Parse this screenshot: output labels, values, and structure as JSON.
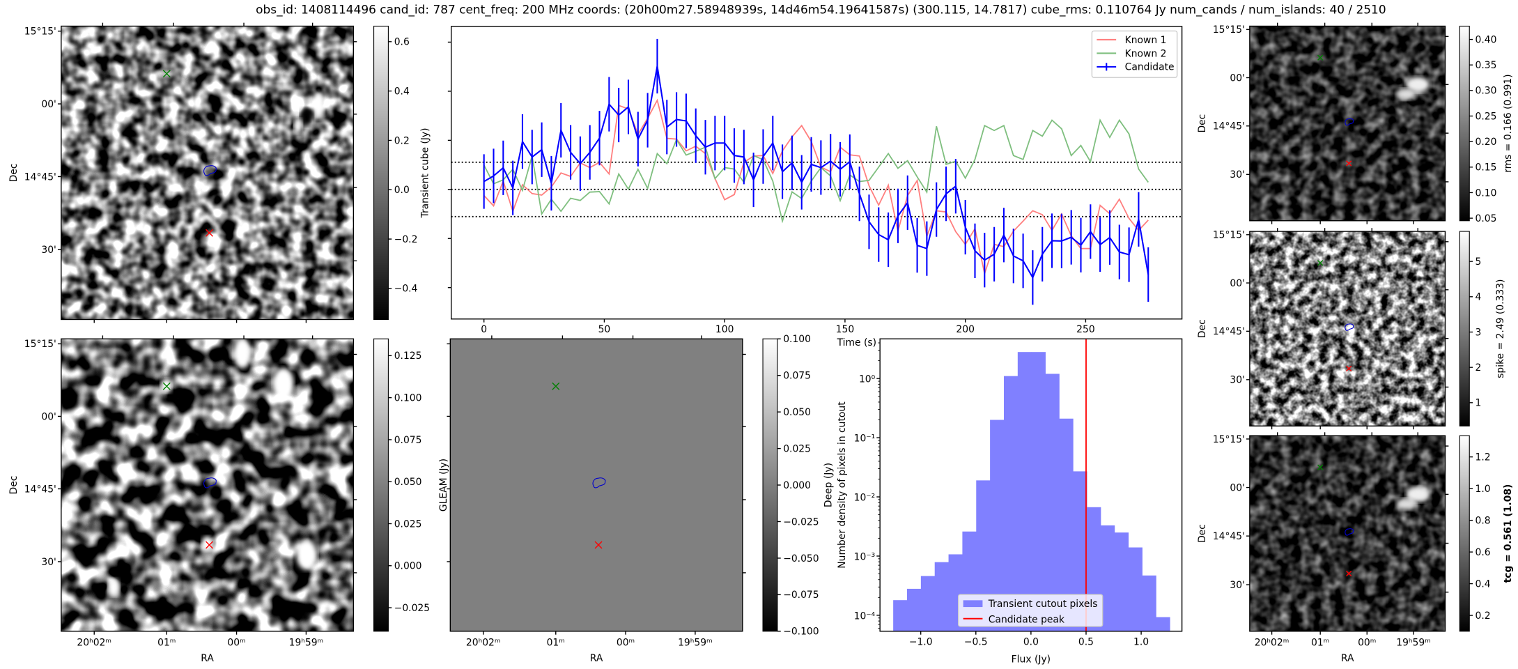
{
  "title": "obs_id: 1408114496 cand_id: 787 cent_freq: 200 MHz coords: (20h00m27.58948939s, 14d46m54.19641587s) (300.115, 14.7817) cube_rms: 0.110764 Jy num_cands / num_islands: 40 / 2510",
  "sky_axes": {
    "dec_label": "Dec",
    "ra_label": "RA",
    "dec_ticks": [
      "15°15'",
      "00'",
      "14°45'",
      "30'"
    ],
    "ra_ticks": [
      "20ʰ02ᵐ",
      "01ᵐ",
      "00ᵐ",
      "19ʰ59ᵐ"
    ]
  },
  "colors": {
    "known1": "#ff7f7f",
    "known2": "#7fbf7f",
    "candidate": "#0000ff",
    "hist": "#8080ff",
    "peak": "#ff0000",
    "gleam_fill": "#808080"
  },
  "panels": {
    "transient": {
      "cbar_label": "Transient cube (Jy)",
      "range": [
        -0.526,
        0.663
      ],
      "ticks": [
        {
          "v": 0.6,
          "label": "0.6"
        },
        {
          "v": 0.4,
          "label": "0.4"
        },
        {
          "v": 0.2,
          "label": "0.2"
        },
        {
          "v": 0.0,
          "label": "0.0"
        },
        {
          "v": -0.2,
          "label": "−0.2"
        },
        {
          "v": -0.4,
          "label": "−0.4"
        }
      ]
    },
    "deep": {
      "cbar_label": "GLEAM (Jy)",
      "range": [
        -0.039,
        0.135
      ],
      "ticks": [
        {
          "v": 0.125,
          "label": "0.125"
        },
        {
          "v": 0.1,
          "label": "0.100"
        },
        {
          "v": 0.075,
          "label": "0.075"
        },
        {
          "v": 0.05,
          "label": "0.050"
        },
        {
          "v": 0.025,
          "label": "0.025"
        },
        {
          "v": 0.0,
          "label": "0.000"
        },
        {
          "v": -0.025,
          "label": "−0.025"
        }
      ]
    },
    "gleam": {
      "cbar_label": "Deep (Jy)",
      "range": [
        -0.1,
        0.1
      ],
      "ticks": [
        {
          "v": 0.1,
          "label": "0.100"
        },
        {
          "v": 0.075,
          "label": "0.075"
        },
        {
          "v": 0.05,
          "label": "0.050"
        },
        {
          "v": 0.025,
          "label": "0.025"
        },
        {
          "v": 0.0,
          "label": "0.000"
        },
        {
          "v": -0.025,
          "label": "−0.025"
        },
        {
          "v": -0.05,
          "label": "−0.050"
        },
        {
          "v": -0.075,
          "label": "−0.075"
        },
        {
          "v": -0.1,
          "label": "−0.100"
        }
      ]
    },
    "rms": {
      "cbar_label": "rms = 0.166 (0.991)",
      "range": [
        0.045,
        0.426
      ],
      "ticks": [
        {
          "v": 0.4,
          "label": "0.40"
        },
        {
          "v": 0.35,
          "label": "0.35"
        },
        {
          "v": 0.3,
          "label": "0.30"
        },
        {
          "v": 0.25,
          "label": "0.25"
        },
        {
          "v": 0.2,
          "label": "0.20"
        },
        {
          "v": 0.15,
          "label": "0.15"
        },
        {
          "v": 0.1,
          "label": "0.10"
        },
        {
          "v": 0.05,
          "label": "0.05"
        }
      ]
    },
    "spike": {
      "cbar_label": "spike = 2.49 (0.333)",
      "range": [
        0.34,
        5.85
      ],
      "ticks": [
        {
          "v": 5,
          "label": "5"
        },
        {
          "v": 4,
          "label": "4"
        },
        {
          "v": 3,
          "label": "3"
        },
        {
          "v": 2,
          "label": "2"
        },
        {
          "v": 1,
          "label": "1"
        }
      ]
    },
    "tcg": {
      "cbar_label": "tcg = 0.561 (1.08)",
      "range": [
        0.1,
        1.334
      ],
      "ticks": [
        {
          "v": 1.2,
          "label": "1.2"
        },
        {
          "v": 1.0,
          "label": "1.0"
        },
        {
          "v": 0.8,
          "label": "0.8"
        },
        {
          "v": 0.6,
          "label": "0.6"
        },
        {
          "v": 0.4,
          "label": "0.4"
        },
        {
          "v": 0.2,
          "label": "0.2"
        }
      ]
    }
  },
  "chart_data": [
    {
      "type": "line",
      "title": "",
      "xlabel": "Time (s)",
      "ylabel": "Transient cube (Jy)",
      "xlim": [
        -13.6,
        290
      ],
      "ylim": [
        -0.528,
        0.664
      ],
      "xticks": [
        0,
        50,
        100,
        150,
        200,
        250
      ],
      "yticks": [
        0.6,
        0.4,
        0.2,
        0.0,
        -0.2,
        -0.4
      ],
      "hlines": [
        0.110764,
        0.0,
        -0.110764
      ],
      "legend_position": "top-right",
      "x_start": 0,
      "x_step": 4,
      "series": [
        {
          "name": "Known 1",
          "color": "#ff7f7f",
          "values": [
            -0.025,
            -0.067,
            0.034,
            -0.089,
            0.019,
            -0.017,
            -0.023,
            0.01,
            0.067,
            0.053,
            0.108,
            0.089,
            0.11,
            0.063,
            0.342,
            0.328,
            0.224,
            0.29,
            0.363,
            0.208,
            0.205,
            0.157,
            0.176,
            0.146,
            0.044,
            -0.042,
            -0.021,
            0.11,
            0.136,
            0.138,
            0.065,
            0.157,
            0.214,
            0.26,
            0.195,
            0.091,
            0.072,
            0.172,
            0.141,
            0.136,
            0.015,
            -0.064,
            0.017,
            -0.17,
            -0.025,
            0.036,
            -0.191,
            -0.087,
            -0.092,
            -0.172,
            -0.224,
            -0.16,
            -0.343,
            -0.224,
            -0.233,
            -0.17,
            -0.129,
            -0.087,
            -0.103,
            -0.167,
            -0.1,
            -0.189,
            -0.241,
            -0.241,
            -0.065,
            -0.099,
            -0.04,
            -0.118,
            -0.167,
            -0.125
          ]
        },
        {
          "name": "Known 2",
          "color": "#7fbf7f",
          "values": [
            0.099,
            0.023,
            0.039,
            0.082,
            -0.004,
            0.136,
            -0.1,
            -0.04,
            -0.089,
            -0.036,
            -0.045,
            -0.011,
            -0.009,
            -0.059,
            0.063,
            0.001,
            0.082,
            0.004,
            0.146,
            0.105,
            0.203,
            0.14,
            0.155,
            0.172,
            0.044,
            0.089,
            0.083,
            0.029,
            0.138,
            0.121,
            0.034,
            -0.129,
            -0.01,
            -0.037,
            0.034,
            0.089,
            0.055,
            -0.046,
            0.059,
            0.032,
            0.037,
            0.091,
            0.146,
            0.086,
            0.117,
            0.051,
            -0.011,
            0.257,
            0.102,
            0.115,
            0.046,
            0.122,
            0.26,
            0.24,
            0.26,
            0.138,
            0.122,
            0.24,
            0.217,
            0.282,
            0.247,
            0.138,
            0.179,
            0.113,
            0.282,
            0.212,
            0.282,
            0.226,
            0.083,
            0.029
          ]
        },
        {
          "name": "Candidate",
          "color": "#0000ff",
          "yerr": 0.111,
          "values": [
            0.032,
            0.055,
            0.088,
            0.006,
            0.195,
            0.132,
            0.162,
            0.025,
            0.241,
            0.151,
            0.105,
            0.151,
            0.209,
            0.347,
            0.303,
            0.336,
            0.205,
            0.282,
            0.502,
            0.254,
            0.285,
            0.279,
            0.219,
            0.172,
            0.189,
            0.189,
            0.138,
            0.132,
            0.039,
            0.134,
            0.189,
            0.072,
            0.108,
            0.029,
            0.102,
            0.089,
            0.115,
            0.082,
            0.113,
            -0.018,
            -0.132,
            -0.184,
            -0.205,
            -0.108,
            -0.054,
            -0.228,
            -0.241,
            -0.082,
            -0.018,
            0.013,
            -0.154,
            -0.25,
            -0.288,
            -0.264,
            -0.186,
            -0.271,
            -0.291,
            -0.359,
            -0.264,
            -0.209,
            -0.21,
            -0.195,
            -0.227,
            -0.172,
            -0.225,
            -0.196,
            -0.255,
            -0.266,
            -0.122,
            -0.347
          ]
        }
      ]
    },
    {
      "type": "bar",
      "subtype": "histogram",
      "xlabel": "Flux (Jy)",
      "ylabel": "Number density of pixels in cutout",
      "yscale": "log",
      "xlim": [
        -1.37,
        1.37
      ],
      "ylim_log10": [
        -4.27,
        0.67
      ],
      "xticks": [
        {
          "v": -1.0,
          "label": "−1.0"
        },
        {
          "v": -0.5,
          "label": "−0.5"
        },
        {
          "v": 0.0,
          "label": "0.0"
        },
        {
          "v": 0.5,
          "label": "0.5"
        },
        {
          "v": 1.0,
          "label": "1.0"
        }
      ],
      "yticks": [
        {
          "exp": 0,
          "label": "10⁰"
        },
        {
          "exp": -1,
          "label": "10⁻¹"
        },
        {
          "exp": -2,
          "label": "10⁻²"
        },
        {
          "exp": -3,
          "label": "10⁻³"
        },
        {
          "exp": -4,
          "label": "10⁻⁴"
        }
      ],
      "bin_start": -1.25,
      "bin_width": 0.1255,
      "values": [
        0.00018,
        0.00028,
        0.00046,
        0.00079,
        0.00107,
        0.0026,
        0.019,
        0.2,
        1.1,
        2.8,
        2.8,
        1.2,
        0.21,
        0.027,
        0.0067,
        0.0033,
        0.0025,
        0.0014,
        0.00047,
        9.3e-05
      ],
      "vline": {
        "name": "Candidate peak",
        "x": 0.5
      },
      "legend": [
        "Transient cutout pixels",
        "Candidate peak"
      ],
      "legend_position": "lower-center"
    }
  ]
}
